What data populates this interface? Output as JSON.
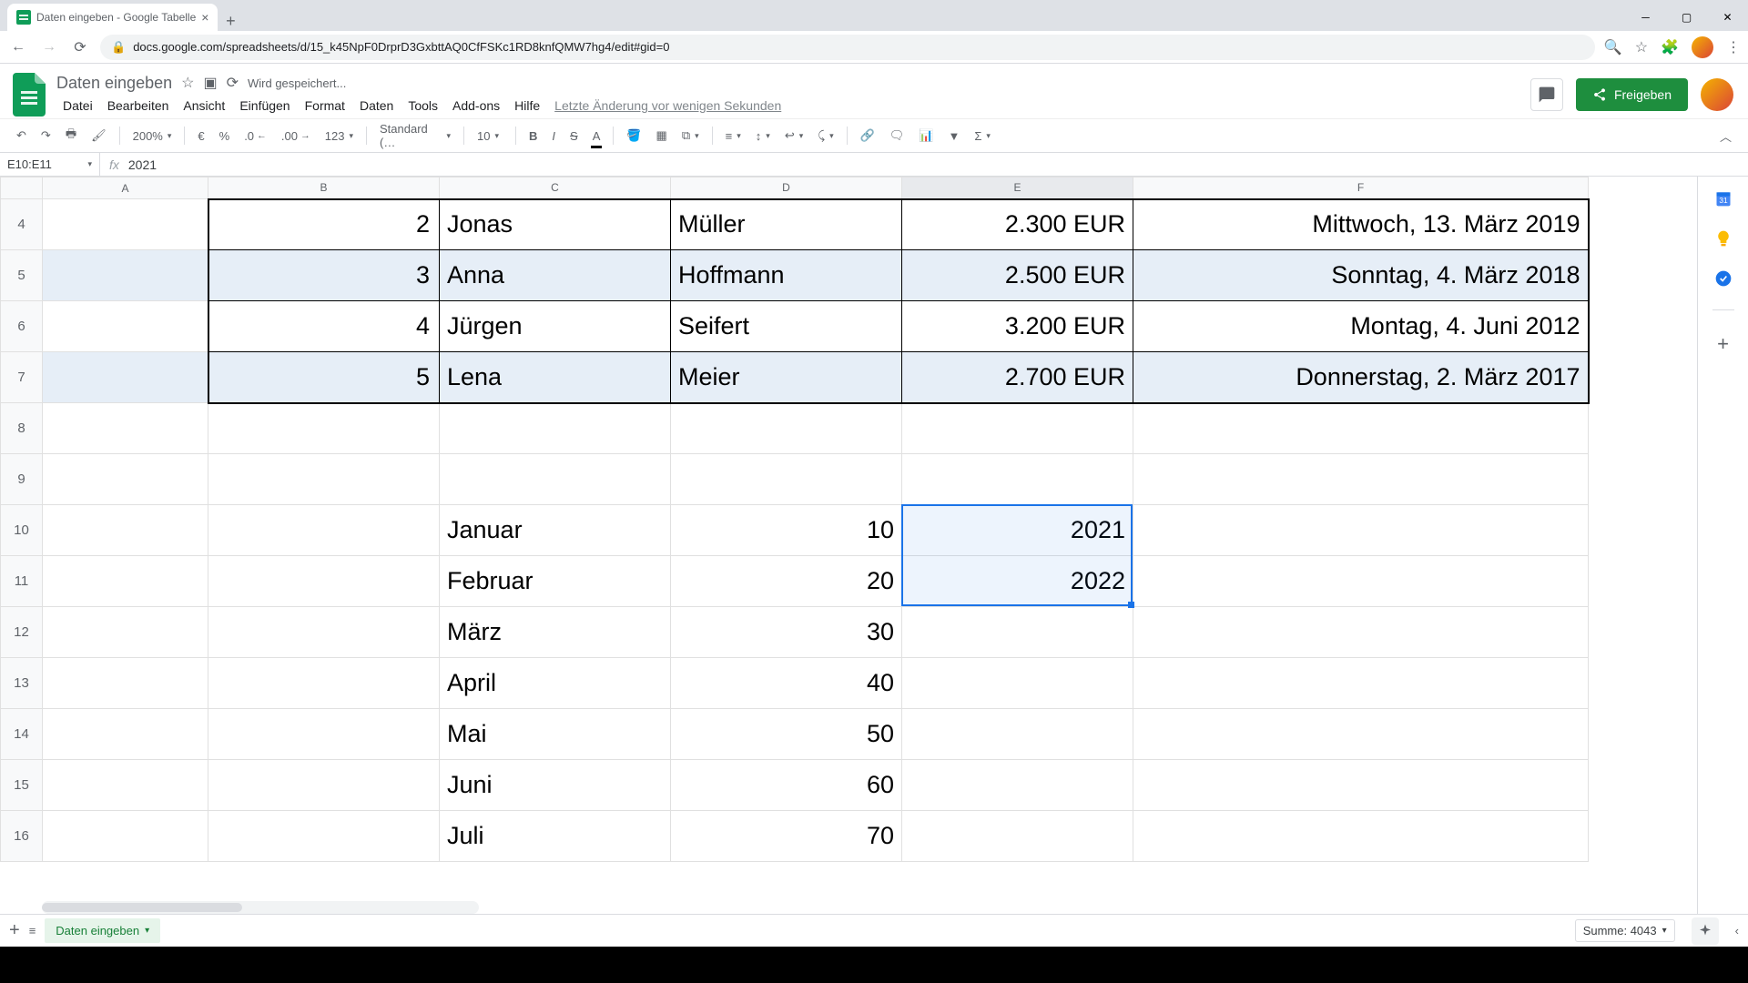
{
  "browser": {
    "tab_title": "Daten eingeben - Google Tabelle",
    "url": "docs.google.com/spreadsheets/d/15_k45NpF0DrprD3GxbttAQ0CfFSKc1RD8knfQMW7hg4/edit#gid=0"
  },
  "doc": {
    "title": "Daten eingeben",
    "save_status": "Wird gespeichert...",
    "last_edit": "Letzte Änderung vor wenigen Sekunden",
    "share_label": "Freigeben"
  },
  "menus": {
    "file": "Datei",
    "edit": "Bearbeiten",
    "view": "Ansicht",
    "insert": "Einfügen",
    "format": "Format",
    "data": "Daten",
    "tools": "Tools",
    "addons": "Add-ons",
    "help": "Hilfe"
  },
  "toolbar": {
    "zoom": "200%",
    "currency": "€",
    "percent": "%",
    "dec_dec": ".0",
    "dec_inc": ".00",
    "numfmt": "123",
    "font": "Standard (…",
    "size": "10"
  },
  "formula": {
    "name_box": "E10:E11",
    "value": "2021"
  },
  "columns": [
    "A",
    "B",
    "C",
    "D",
    "E",
    "F"
  ],
  "rows": [
    {
      "n": "4",
      "B": "2",
      "C": "Jonas",
      "D": "Müller",
      "E": "2.300 EUR",
      "F": "Mittwoch, 13. März 2019",
      "band": false
    },
    {
      "n": "5",
      "B": "3",
      "C": "Anna",
      "D": "Hoffmann",
      "E": "2.500 EUR",
      "F": "Sonntag, 4. März 2018",
      "band": true
    },
    {
      "n": "6",
      "B": "4",
      "C": "Jürgen",
      "D": "Seifert",
      "E": "3.200 EUR",
      "F": "Montag, 4. Juni 2012",
      "band": false
    },
    {
      "n": "7",
      "B": "5",
      "C": "Lena",
      "D": "Meier",
      "E": "2.700 EUR",
      "F": "Donnerstag, 2. März 2017",
      "band": true
    },
    {
      "n": "8",
      "B": "",
      "C": "",
      "D": "",
      "E": "",
      "F": "",
      "band": false
    },
    {
      "n": "9",
      "B": "",
      "C": "",
      "D": "",
      "E": "",
      "F": "",
      "band": false
    },
    {
      "n": "10",
      "B": "",
      "C": "Januar",
      "D": "10",
      "E": "2021",
      "F": "",
      "band": false
    },
    {
      "n": "11",
      "B": "",
      "C": "Februar",
      "D": "20",
      "E": "2022",
      "F": "",
      "band": false
    },
    {
      "n": "12",
      "B": "",
      "C": "März",
      "D": "30",
      "E": "",
      "F": "",
      "band": false
    },
    {
      "n": "13",
      "B": "",
      "C": "April",
      "D": "40",
      "E": "",
      "F": "",
      "band": false
    },
    {
      "n": "14",
      "B": "",
      "C": "Mai",
      "D": "50",
      "E": "",
      "F": "",
      "band": false
    },
    {
      "n": "15",
      "B": "",
      "C": "Juni",
      "D": "60",
      "E": "",
      "F": "",
      "band": false
    },
    {
      "n": "16",
      "B": "",
      "C": "Juli",
      "D": "70",
      "E": "",
      "F": "",
      "band": false
    }
  ],
  "column_widths": {
    "A": 182,
    "B": 254,
    "C": 254,
    "D": 254,
    "E": 254,
    "F": 500
  },
  "bordered_table": {
    "first_row": "4",
    "last_row": "7",
    "cols": [
      "B",
      "C",
      "D",
      "E",
      "F"
    ]
  },
  "selection": {
    "col": "E",
    "row_start": "10",
    "row_end": "11"
  },
  "status": {
    "summary": "Summe: 4043"
  },
  "sheet_tab": "Daten eingeben",
  "colors": {
    "band_bg": "#e6eef7",
    "selection_border": "#1a73e8",
    "share_bg": "#1e8e3e",
    "grid_border": "#e0e0e0",
    "header_bg": "#f8f9fa"
  }
}
